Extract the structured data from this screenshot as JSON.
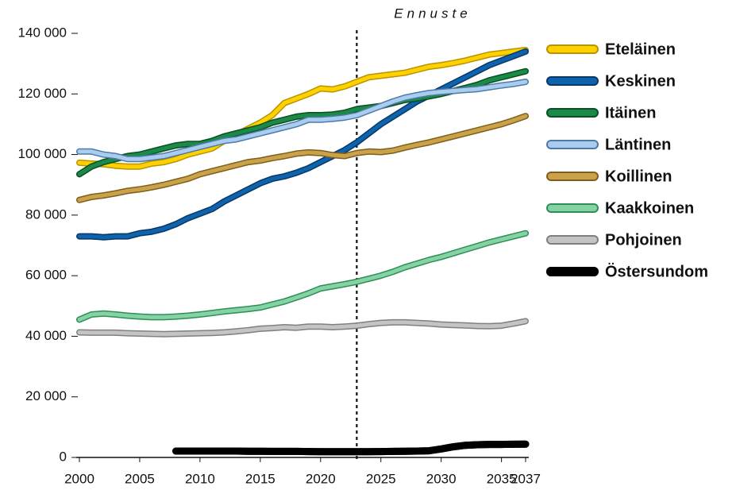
{
  "chart_data": {
    "type": "line",
    "annotation": "Ennuste",
    "forecast_start": 2023,
    "x": [
      2000,
      2001,
      2002,
      2003,
      2004,
      2005,
      2006,
      2007,
      2008,
      2009,
      2010,
      2011,
      2012,
      2013,
      2014,
      2015,
      2016,
      2017,
      2018,
      2019,
      2020,
      2021,
      2022,
      2023,
      2024,
      2025,
      2026,
      2027,
      2028,
      2029,
      2030,
      2031,
      2032,
      2033,
      2034,
      2035,
      2036,
      2037
    ],
    "xlim": [
      2000,
      2037
    ],
    "xticks": [
      2000,
      2005,
      2010,
      2015,
      2020,
      2025,
      2030,
      2035,
      2037
    ],
    "ylim": [
      0,
      140000
    ],
    "yticks": [
      0,
      {
        "value": 20000,
        "label": "20 000"
      },
      {
        "value": 40000,
        "label": "40 000"
      },
      {
        "value": 60000,
        "label": "60 000"
      },
      {
        "value": 80000,
        "label": "80 000"
      },
      {
        "value": 100000,
        "label": "100 000"
      },
      {
        "value": 120000,
        "label": "120 000"
      },
      {
        "value": 140000,
        "label": "140 000"
      }
    ],
    "grid": false,
    "series": [
      {
        "name": "Eteläinen",
        "color": "#ffd100",
        "outline": "#b89400",
        "values": [
          97300,
          97000,
          96800,
          96300,
          96000,
          96000,
          97000,
          97500,
          98500,
          100000,
          101000,
          102000,
          104500,
          106500,
          108500,
          110500,
          113000,
          117000,
          118500,
          120000,
          121800,
          121500,
          122500,
          124000,
          125500,
          126000,
          126500,
          127000,
          128000,
          129000,
          129500,
          130200,
          131000,
          132000,
          133000,
          133500,
          134000,
          134500
        ]
      },
      {
        "name": "Keskinen",
        "color": "#0f62ac",
        "outline": "#073866",
        "values": [
          73000,
          73000,
          72700,
          73000,
          73000,
          74000,
          74500,
          75500,
          77000,
          79000,
          80500,
          82000,
          84500,
          86500,
          88500,
          90500,
          92000,
          92800,
          94000,
          95500,
          97500,
          99500,
          101500,
          104000,
          107000,
          110000,
          112500,
          115000,
          117500,
          119500,
          121500,
          123500,
          125500,
          127500,
          129500,
          131000,
          132500,
          134000
        ]
      },
      {
        "name": "Itäinen",
        "color": "#1a8a46",
        "outline": "#0b4f26",
        "values": [
          93500,
          96000,
          97500,
          98500,
          99500,
          100000,
          101000,
          102000,
          103000,
          103500,
          103500,
          104500,
          106000,
          107000,
          108000,
          109000,
          110500,
          111500,
          112500,
          113000,
          113000,
          113200,
          113800,
          115000,
          115500,
          116000,
          117000,
          118000,
          118500,
          119200,
          120000,
          121000,
          122000,
          123000,
          124500,
          125500,
          126500,
          127500
        ]
      },
      {
        "name": "Läntinen",
        "color": "#a9cdef",
        "outline": "#4f7aa6",
        "values": [
          101000,
          101000,
          100000,
          99500,
          98500,
          98500,
          99000,
          99500,
          100500,
          101500,
          102500,
          103500,
          104500,
          105000,
          106000,
          107000,
          108000,
          109000,
          110000,
          111500,
          111500,
          111800,
          112200,
          113000,
          114500,
          116000,
          117500,
          118800,
          119600,
          120300,
          120700,
          121000,
          121300,
          121600,
          122200,
          122800,
          123300,
          124000
        ]
      },
      {
        "name": "Koillinen",
        "color": "#c9a24a",
        "outline": "#7f5f1e",
        "values": [
          85000,
          86000,
          86500,
          87200,
          88000,
          88500,
          89200,
          90000,
          91000,
          92000,
          93500,
          94500,
          95500,
          96500,
          97500,
          98000,
          98800,
          99500,
          100300,
          100700,
          100500,
          99800,
          99500,
          100500,
          101000,
          100800,
          101300,
          102300,
          103200,
          104000,
          105000,
          106000,
          107000,
          108000,
          109000,
          110000,
          111300,
          112700
        ]
      },
      {
        "name": "Kaakkoinen",
        "color": "#85d2a4",
        "outline": "#2f8f57",
        "values": [
          45500,
          47200,
          47500,
          47200,
          46800,
          46500,
          46300,
          46300,
          46500,
          46800,
          47200,
          47700,
          48200,
          48600,
          49000,
          49500,
          50500,
          51500,
          52800,
          54200,
          55800,
          56500,
          57200,
          58000,
          59000,
          60000,
          61300,
          62800,
          64000,
          65200,
          66200,
          67400,
          68600,
          69800,
          71000,
          72000,
          73000,
          74000
        ]
      },
      {
        "name": "Pohjoinen",
        "color": "#c4c4c4",
        "outline": "#808080",
        "values": [
          41300,
          41200,
          41200,
          41200,
          41000,
          40900,
          40800,
          40700,
          40800,
          40900,
          41000,
          41100,
          41300,
          41600,
          42000,
          42500,
          42700,
          43000,
          42800,
          43200,
          43200,
          43000,
          43200,
          43500,
          44000,
          44400,
          44600,
          44600,
          44400,
          44200,
          43900,
          43700,
          43600,
          43400,
          43300,
          43500,
          44200,
          45000
        ]
      },
      {
        "name": "Östersundom",
        "color": "#000000",
        "outline": "#000000",
        "values": [
          null,
          null,
          null,
          null,
          null,
          null,
          null,
          null,
          2100,
          2100,
          2100,
          2100,
          2100,
          2100,
          2050,
          2050,
          2000,
          2000,
          2000,
          1950,
          1900,
          1900,
          1900,
          1900,
          1900,
          1950,
          2000,
          2050,
          2100,
          2200,
          2800,
          3500,
          4000,
          4200,
          4300,
          4300,
          4350,
          4400
        ]
      }
    ]
  }
}
